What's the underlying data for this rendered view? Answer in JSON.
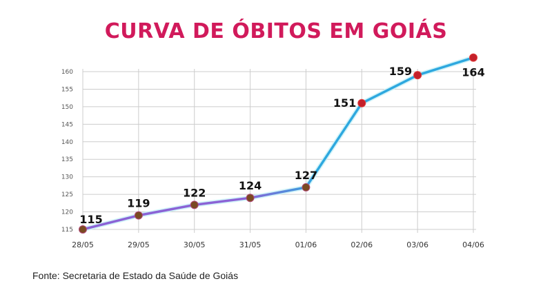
{
  "chart_data": {
    "type": "line",
    "title": "CURVA DE ÓBITOS EM GOIÁS",
    "categories": [
      "28/05",
      "29/05",
      "30/05",
      "31/05",
      "01/06",
      "02/06",
      "03/06",
      "04/06"
    ],
    "series": [
      {
        "values": [
          115,
          119,
          122,
          124,
          127,
          151,
          159,
          164
        ]
      }
    ],
    "y_ticks": [
      115,
      120,
      125,
      130,
      135,
      140,
      145,
      150,
      155,
      160
    ],
    "ylim": [
      115,
      160
    ],
    "grid": true,
    "data_labels": [
      "115",
      "119",
      "122",
      "124",
      "127",
      "151",
      "159",
      "164"
    ]
  },
  "source": "Fonte: Secretaria de Estado da Saúde de Goiás",
  "colors": {
    "title": "#d11a5b",
    "line_start": "#8a63d6",
    "line_end": "#2ea8df",
    "marker_early": "#7a4a22",
    "marker_late": "#c4202a",
    "grid": "#cccccc"
  }
}
